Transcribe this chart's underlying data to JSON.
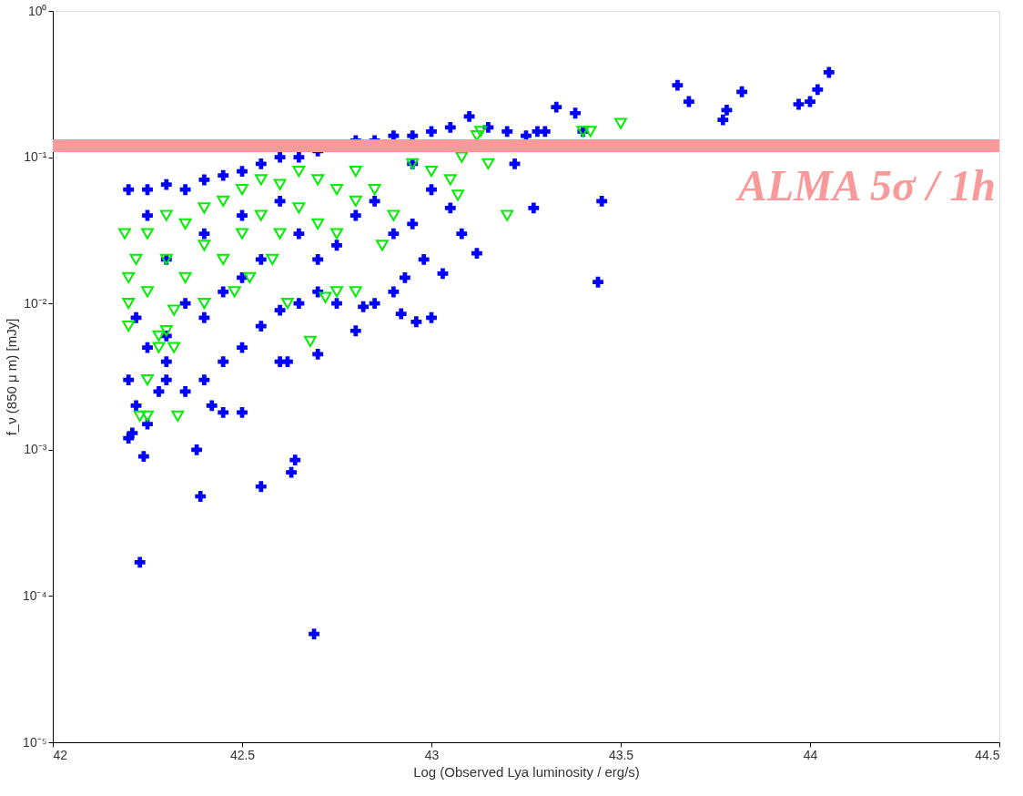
{
  "chart_data": {
    "type": "scatter",
    "xlabel": "Log (Observed Lya luminosity / erg/s)",
    "ylabel": "f_ν (850 μ m) [mJy]",
    "xlim": [
      42,
      44.5
    ],
    "xticks": [
      42,
      42.5,
      43,
      43.5,
      44,
      44.5
    ],
    "ylim": [
      1e-05,
      1
    ],
    "yticks": [
      {
        "value": 1e-05,
        "label": "10⁻⁵"
      },
      {
        "value": 0.0001,
        "label": "10⁻⁴"
      },
      {
        "value": 0.001,
        "label": "10⁻³"
      },
      {
        "value": 0.01,
        "label": "10⁻²"
      },
      {
        "value": 0.1,
        "label": "10⁻¹"
      },
      {
        "value": 1,
        "label": "10⁰"
      }
    ],
    "log": "y",
    "grid": false,
    "ref_lines": [
      {
        "axis": "y",
        "value": 0.12,
        "label": "ALMA 5σ / 1h",
        "color": "#f99a9a"
      }
    ],
    "series": [
      {
        "color": "#0000ff",
        "marker": "cross",
        "x": [
          42.2,
          42.25,
          42.3,
          42.35,
          42.4,
          42.45,
          42.5,
          42.55,
          42.6,
          42.65,
          42.7,
          42.8,
          42.85,
          42.9,
          42.95,
          43.0,
          43.05,
          43.1,
          43.15,
          43.2,
          43.25,
          43.33,
          43.38,
          43.28,
          42.2,
          42.22,
          42.2,
          42.21,
          42.24,
          42.23,
          42.25,
          42.28,
          42.3,
          42.35,
          42.38,
          42.39,
          42.4,
          42.42,
          42.45,
          42.5,
          42.45,
          42.5,
          42.55,
          42.6,
          42.63,
          42.64,
          42.62,
          42.69,
          42.7,
          42.55,
          42.6,
          42.65,
          42.7,
          42.75,
          42.8,
          42.82,
          42.85,
          42.9,
          42.92,
          42.96,
          43.0,
          42.93,
          42.98,
          43.03,
          43.08,
          43.12,
          43.05,
          43.27,
          43.44,
          43.45,
          42.9,
          42.95,
          43.0,
          42.95,
          43.22,
          42.85,
          42.8,
          42.75,
          42.7,
          42.65,
          42.6,
          42.5,
          42.4,
          42.3,
          42.25,
          42.22,
          42.3,
          42.35,
          42.4,
          42.45,
          42.5,
          42.55,
          42.3,
          42.25,
          43.65,
          43.68,
          43.77,
          43.78,
          43.82,
          43.97,
          44.0,
          44.02,
          44.05,
          43.4,
          43.3
        ],
        "values": [
          0.06,
          0.06,
          0.065,
          0.06,
          0.07,
          0.075,
          0.08,
          0.09,
          0.1,
          0.1,
          0.11,
          0.13,
          0.13,
          0.14,
          0.14,
          0.15,
          0.16,
          0.19,
          0.16,
          0.15,
          0.14,
          0.22,
          0.2,
          0.15,
          0.003,
          0.002,
          0.0012,
          0.0013,
          0.0009,
          0.00017,
          0.0015,
          0.0025,
          0.003,
          0.0025,
          0.001,
          0.00048,
          0.003,
          0.002,
          0.0018,
          0.0018,
          0.004,
          0.005,
          0.00056,
          0.004,
          0.0007,
          0.00085,
          0.004,
          5.5e-05,
          0.0045,
          0.007,
          0.009,
          0.01,
          0.012,
          0.01,
          0.0065,
          0.0095,
          0.01,
          0.012,
          0.0085,
          0.0075,
          0.008,
          0.015,
          0.02,
          0.016,
          0.03,
          0.022,
          0.045,
          0.045,
          0.014,
          0.05,
          0.03,
          0.035,
          0.06,
          0.09,
          0.09,
          0.05,
          0.04,
          0.025,
          0.02,
          0.03,
          0.05,
          0.04,
          0.03,
          0.02,
          0.04,
          0.008,
          0.006,
          0.01,
          0.008,
          0.012,
          0.015,
          0.02,
          0.004,
          0.005,
          0.31,
          0.24,
          0.18,
          0.21,
          0.28,
          0.23,
          0.24,
          0.29,
          0.38,
          0.15,
          0.15
        ]
      },
      {
        "color": "#00ee00",
        "marker": "triangle",
        "x": [
          42.19,
          42.2,
          42.2,
          42.2,
          42.22,
          42.25,
          42.25,
          42.28,
          42.3,
          42.3,
          42.32,
          42.35,
          42.35,
          42.4,
          42.4,
          42.4,
          42.45,
          42.45,
          42.48,
          42.5,
          42.5,
          42.52,
          42.55,
          42.55,
          42.58,
          42.6,
          42.6,
          42.62,
          42.65,
          42.65,
          42.7,
          42.7,
          42.75,
          42.75,
          42.8,
          42.8,
          42.85,
          42.87,
          42.9,
          42.95,
          43.0,
          43.05,
          43.08,
          43.12,
          43.15,
          43.07,
          43.2,
          43.4,
          43.42,
          43.5,
          42.25,
          42.23,
          42.33,
          42.25,
          42.28,
          42.32,
          42.3,
          42.72,
          42.75,
          42.8,
          42.68,
          43.13
        ],
        "values": [
          0.03,
          0.015,
          0.01,
          0.007,
          0.02,
          0.03,
          0.012,
          0.006,
          0.04,
          0.02,
          0.009,
          0.035,
          0.015,
          0.045,
          0.025,
          0.01,
          0.05,
          0.02,
          0.012,
          0.06,
          0.03,
          0.015,
          0.07,
          0.04,
          0.02,
          0.065,
          0.03,
          0.01,
          0.08,
          0.045,
          0.07,
          0.035,
          0.06,
          0.03,
          0.08,
          0.05,
          0.06,
          0.025,
          0.04,
          0.09,
          0.08,
          0.07,
          0.1,
          0.14,
          0.09,
          0.055,
          0.04,
          0.15,
          0.15,
          0.17,
          0.0017,
          0.0017,
          0.0017,
          0.003,
          0.005,
          0.005,
          0.0065,
          0.011,
          0.012,
          0.012,
          0.0055,
          0.15
        ]
      }
    ]
  }
}
